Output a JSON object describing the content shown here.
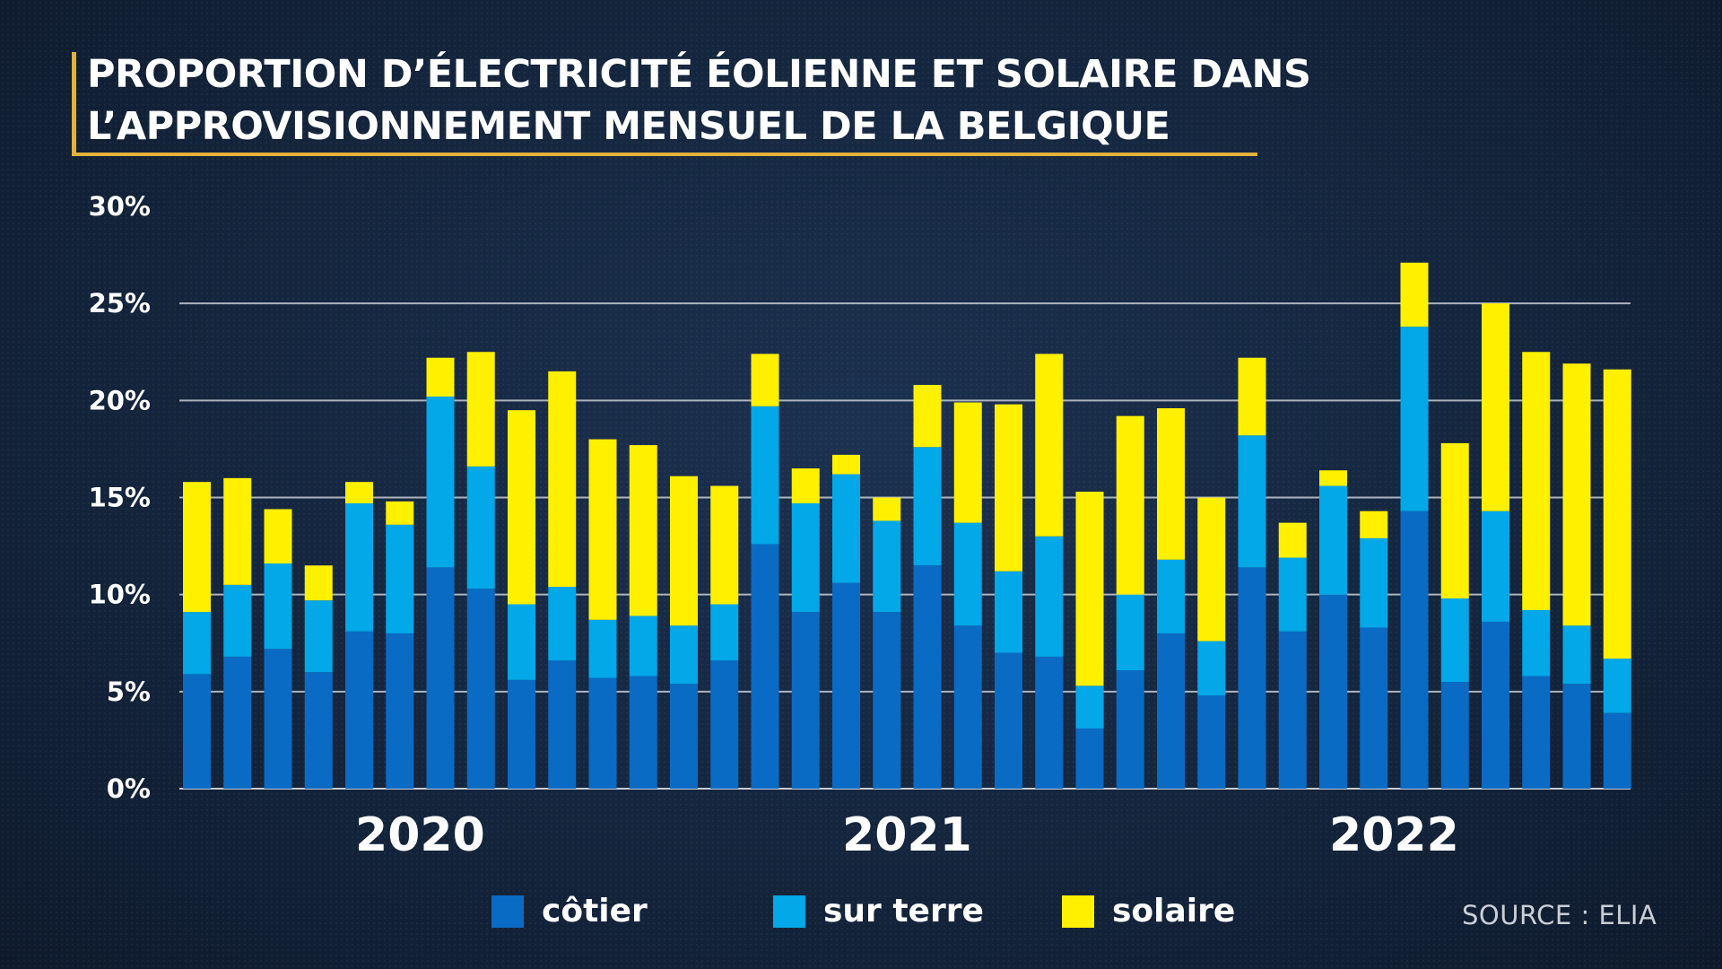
{
  "title": {
    "line1": "PROPORTION D’ÉLECTRICITÉ ÉOLIENNE ET SOLAIRE DANS",
    "line2": "L’APPROVISIONNEMENT MENSUEL DE LA BELGIQUE"
  },
  "source": "SOURCE : ELIA",
  "colors": {
    "background": "#13233a",
    "accent_border": "#e3b13c",
    "cotier": "#0a6bc4",
    "sur_terre": "#02a8e8",
    "solaire": "#fff000",
    "gridline": "#c8cdd4"
  },
  "chart_data": {
    "type": "bar",
    "stacked": true,
    "categories": [
      "",
      "",
      "",
      "",
      "",
      "",
      "",
      "",
      "",
      "",
      "",
      "",
      "",
      "",
      "",
      "",
      "",
      "",
      "",
      "",
      "",
      "",
      "",
      "",
      "",
      "",
      "",
      "",
      "",
      "",
      "",
      "",
      "",
      "",
      "",
      ""
    ],
    "year_labels": [
      {
        "label": "2020",
        "start_index": 0,
        "end_index": 11
      },
      {
        "label": "2021",
        "start_index": 12,
        "end_index": 23
      },
      {
        "label": "2022",
        "start_index": 24,
        "end_index": 35
      }
    ],
    "series": [
      {
        "name": "côtier",
        "color": "#0a6bc4",
        "values": [
          5.9,
          6.8,
          7.2,
          6.0,
          8.1,
          8.0,
          11.4,
          10.3,
          5.6,
          6.6,
          5.7,
          5.8,
          5.4,
          6.6,
          12.6,
          9.1,
          10.6,
          9.1,
          11.5,
          8.4,
          7.0,
          6.8,
          3.1,
          6.1,
          8.0,
          4.8,
          11.4,
          8.1,
          10.0,
          8.3,
          14.3,
          5.5,
          8.6,
          5.8,
          5.4,
          3.9
        ]
      },
      {
        "name": "sur terre",
        "color": "#02a8e8",
        "values": [
          3.2,
          3.7,
          4.4,
          3.7,
          6.6,
          5.6,
          8.8,
          6.3,
          3.9,
          3.8,
          3.0,
          3.1,
          3.0,
          2.9,
          7.1,
          5.6,
          5.6,
          4.7,
          6.1,
          5.3,
          4.2,
          6.2,
          2.2,
          3.9,
          3.8,
          2.8,
          6.8,
          3.8,
          5.6,
          4.6,
          9.5,
          4.3,
          5.7,
          3.4,
          3.0,
          2.8
        ]
      },
      {
        "name": "solaire",
        "color": "#fff000",
        "values": [
          6.7,
          5.5,
          2.8,
          1.8,
          1.1,
          1.2,
          2.0,
          5.9,
          10.0,
          11.1,
          9.3,
          8.8,
          7.7,
          6.1,
          2.7,
          1.8,
          1.0,
          1.2,
          3.2,
          6.2,
          8.6,
          9.4,
          10.0,
          9.2,
          7.8,
          7.4,
          4.0,
          1.8,
          0.8,
          1.4,
          3.3,
          8.0,
          10.7,
          13.3,
          13.5,
          14.9
        ]
      }
    ],
    "yticks": [
      "0%",
      "5%",
      "10%",
      "15%",
      "20%",
      "25%",
      "30%"
    ],
    "ylim": [
      0,
      30
    ],
    "grid": true,
    "legend_position": "bottom"
  }
}
